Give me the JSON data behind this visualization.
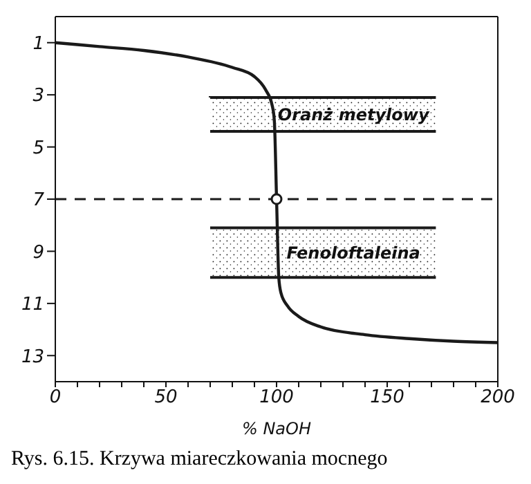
{
  "chart_data": {
    "type": "line",
    "xlabel": "% NaOH",
    "x": [
      0,
      20,
      40,
      60,
      80,
      90,
      95,
      98,
      99,
      100,
      101,
      102,
      105,
      110,
      120,
      140,
      160,
      180,
      200
    ],
    "series": [
      {
        "color": "#1a1a1a",
        "values": [
          1.0,
          1.15,
          1.3,
          1.55,
          1.95,
          2.3,
          2.8,
          3.4,
          4.0,
          7.0,
          10.0,
          10.6,
          11.1,
          11.5,
          11.9,
          12.2,
          12.35,
          12.45,
          12.5
        ]
      },
      {
        "type": "scatter",
        "color": "#1a1a1a",
        "marker": "circle",
        "x": [
          100
        ],
        "values": [
          7
        ]
      }
    ],
    "xlim": [
      0,
      200
    ],
    "ylim": [
      14,
      0
    ],
    "xticks": [
      0,
      {
        "value": 10,
        "label": null
      },
      {
        "value": 20,
        "label": null
      },
      {
        "value": 30,
        "label": null
      },
      {
        "value": 40,
        "label": null
      },
      50,
      {
        "value": 60,
        "label": null
      },
      {
        "value": 70,
        "label": null
      },
      {
        "value": 80,
        "label": null
      },
      {
        "value": 90,
        "label": null
      },
      100,
      {
        "value": 110,
        "label": null
      },
      {
        "value": 120,
        "label": null
      },
      {
        "value": 130,
        "label": null
      },
      {
        "value": 140,
        "label": null
      },
      150,
      {
        "value": 160,
        "label": null
      },
      {
        "value": 170,
        "label": null
      },
      {
        "value": 180,
        "label": null
      },
      {
        "value": 190,
        "label": null
      },
      200
    ],
    "yticks": [
      1,
      3,
      5,
      7,
      9,
      11,
      13
    ],
    "ref_lines": [
      {
        "axis": "y",
        "value": 7,
        "line_style": "dashed",
        "color": "#1a1a1a"
      }
    ],
    "bands": [
      {
        "axis": "y",
        "from": 3.1,
        "to": 4.4,
        "label": "Oranż metylowy",
        "color": "#1a1a1a"
      },
      {
        "axis": "y",
        "from": 8.1,
        "to": 10,
        "label": "Fenoloftaleina",
        "color": "#1a1a1a"
      }
    ],
    "grid": false,
    "legend": false,
    "line_style": "solid",
    "annotations": [
      "Rys. 6.15. Krzywa miareczkowania mocnego"
    ]
  }
}
